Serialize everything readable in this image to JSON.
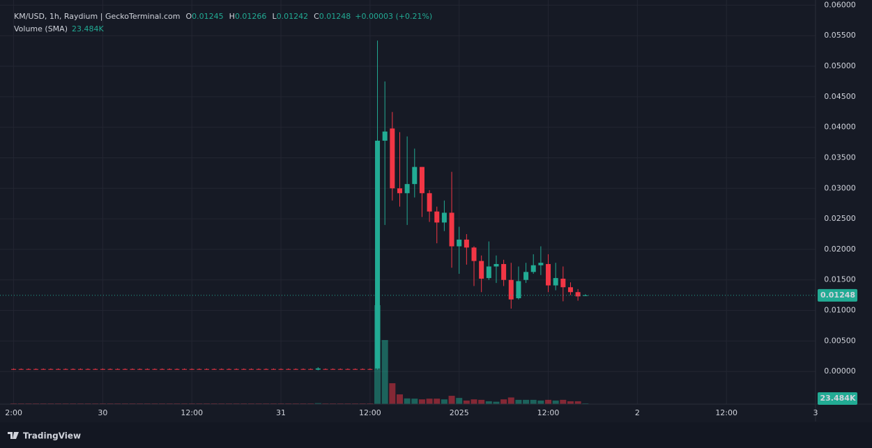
{
  "chart_data": {
    "type": "candlestick",
    "title": "KM/USD, 1h, Raydium | GeckoTerminal.com",
    "ohlc_legend": {
      "open_label": "O",
      "open": "0.01245",
      "high_label": "H",
      "high": "0.01266",
      "low_label": "L",
      "low": "0.01242",
      "close_label": "C",
      "close": "0.01248",
      "change": "+0.00003 (+0.21%)"
    },
    "volume_label": "Volume (SMA)",
    "volume_sma": "23.484K",
    "last_price": {
      "value": 0.01248,
      "label": "0.01248"
    },
    "footer": "TradingView",
    "up_color": "#22ab94",
    "down_color": "#f23645",
    "grid": true,
    "xlim": [
      -12.9,
      96
    ],
    "xticks": [
      {
        "value": -12,
        "label": "2:00"
      },
      {
        "value": 0,
        "label": "30"
      },
      {
        "value": 12,
        "label": "12:00"
      },
      {
        "value": 24,
        "label": "31"
      },
      {
        "value": 36,
        "label": "12:00"
      },
      {
        "value": 48,
        "label": "2025"
      },
      {
        "value": 60,
        "label": "12:00"
      },
      {
        "value": 72,
        "label": "2"
      },
      {
        "value": 84,
        "label": "12:00"
      },
      {
        "value": 96,
        "label": "3"
      }
    ],
    "ylim": [
      -0.00534,
      0.0597
    ],
    "yticks": [
      {
        "value": 0.06,
        "label": "0.06000"
      },
      {
        "value": 0.055,
        "label": "0.05500"
      },
      {
        "value": 0.05,
        "label": "0.05000"
      },
      {
        "value": 0.045,
        "label": "0.04500"
      },
      {
        "value": 0.04,
        "label": "0.04000"
      },
      {
        "value": 0.035,
        "label": "0.03500"
      },
      {
        "value": 0.03,
        "label": "0.03000"
      },
      {
        "value": 0.025,
        "label": "0.02500"
      },
      {
        "value": 0.02,
        "label": "0.02000"
      },
      {
        "value": 0.015,
        "label": "0.01500"
      },
      {
        "value": 0.01,
        "label": "0.01000"
      },
      {
        "value": 0.005,
        "label": "0.00500"
      },
      {
        "value": 0,
        "label": "0.00000"
      }
    ],
    "x": [
      -12,
      -11,
      -10,
      -9,
      -8,
      -7,
      -6,
      -5,
      -4,
      -3,
      -2,
      -1,
      0,
      1,
      2,
      3,
      4,
      5,
      6,
      7,
      8,
      9,
      10,
      11,
      12,
      13,
      14,
      15,
      16,
      17,
      18,
      19,
      20,
      21,
      22,
      23,
      24,
      25,
      26,
      27,
      28,
      29,
      30,
      31,
      32,
      33,
      34,
      35,
      36,
      37,
      38,
      39,
      40,
      41,
      42,
      43,
      44,
      45,
      46,
      47,
      48,
      49,
      50,
      51,
      52,
      53,
      54,
      55,
      56,
      57,
      58,
      59,
      60,
      61,
      62,
      63,
      64,
      65
    ],
    "open": [
      0.0004,
      0.0004,
      0.0004,
      0.0004,
      0.0004,
      0.0004,
      0.0004,
      0.0004,
      0.0004,
      0.0004,
      0.0004,
      0.0004,
      0.0004,
      0.0004,
      0.0004,
      0.0004,
      0.0004,
      0.0004,
      0.0004,
      0.0004,
      0.0004,
      0.0004,
      0.0004,
      0.0004,
      0.0004,
      0.0004,
      0.0004,
      0.0004,
      0.0004,
      0.0004,
      0.0004,
      0.0004,
      0.0004,
      0.0004,
      0.0004,
      0.0004,
      0.0004,
      0.0004,
      0.0004,
      0.0004,
      0.0004,
      0.0003,
      0.0004,
      0.0004,
      0.0004,
      0.0004,
      0.0004,
      0.0004,
      0.0004,
      0.0005,
      0.0378,
      0.0398,
      0.03,
      0.0292,
      0.0307,
      0.0335,
      0.0292,
      0.0262,
      0.0244,
      0.026,
      0.0205,
      0.0216,
      0.0203,
      0.0181,
      0.0153,
      0.0172,
      0.0176,
      0.015,
      0.012,
      0.015,
      0.0163,
      0.0174,
      0.0176,
      0.0141,
      0.0152,
      0.0138,
      0.013,
      0.01245
    ],
    "high": [
      0.0005,
      0.0005,
      0.0005,
      0.0005,
      0.0005,
      0.0005,
      0.0005,
      0.0005,
      0.0005,
      0.0005,
      0.0005,
      0.0005,
      0.0005,
      0.0005,
      0.0005,
      0.0005,
      0.0005,
      0.0005,
      0.0005,
      0.0005,
      0.0005,
      0.0005,
      0.0005,
      0.0005,
      0.0005,
      0.0005,
      0.0005,
      0.0005,
      0.0005,
      0.0005,
      0.0005,
      0.0005,
      0.0005,
      0.0005,
      0.0005,
      0.0005,
      0.0005,
      0.0005,
      0.0005,
      0.0005,
      0.0005,
      0.0007,
      0.0005,
      0.0005,
      0.0005,
      0.0005,
      0.0005,
      0.0005,
      0.0005,
      0.0542,
      0.0475,
      0.0425,
      0.0392,
      0.0385,
      0.0365,
      0.0335,
      0.0297,
      0.027,
      0.028,
      0.0327,
      0.0237,
      0.0225,
      0.0205,
      0.019,
      0.0213,
      0.019,
      0.0183,
      0.0178,
      0.0172,
      0.0178,
      0.0192,
      0.0205,
      0.0192,
      0.0178,
      0.0172,
      0.0146,
      0.0135,
      0.01266
    ],
    "low": [
      0.0003,
      0.0003,
      0.0003,
      0.0003,
      0.0003,
      0.0003,
      0.0003,
      0.0003,
      0.0003,
      0.0003,
      0.0003,
      0.0003,
      0.0003,
      0.0003,
      0.0003,
      0.0003,
      0.0003,
      0.0003,
      0.0003,
      0.0003,
      0.0003,
      0.0003,
      0.0003,
      0.0003,
      0.0003,
      0.0003,
      0.0003,
      0.0003,
      0.0003,
      0.0003,
      0.0003,
      0.0003,
      0.0003,
      0.0003,
      0.0003,
      0.0003,
      0.0003,
      0.0003,
      0.0003,
      0.0003,
      0.0003,
      0.0002,
      0.0003,
      0.0003,
      0.0003,
      0.0003,
      0.0003,
      0.0003,
      0.0003,
      0.0003,
      0.024,
      0.028,
      0.027,
      0.024,
      0.0285,
      0.0253,
      0.0245,
      0.021,
      0.023,
      0.017,
      0.016,
      0.0175,
      0.014,
      0.013,
      0.015,
      0.0145,
      0.014,
      0.0103,
      0.0118,
      0.0145,
      0.016,
      0.0158,
      0.013,
      0.0133,
      0.0115,
      0.0125,
      0.0116,
      0.01242
    ],
    "close": [
      0.0004,
      0.0004,
      0.0004,
      0.0004,
      0.0004,
      0.0004,
      0.0004,
      0.0004,
      0.0004,
      0.0004,
      0.0004,
      0.0004,
      0.0004,
      0.0004,
      0.0004,
      0.0004,
      0.0004,
      0.0004,
      0.0004,
      0.0004,
      0.0004,
      0.0004,
      0.0004,
      0.0004,
      0.0004,
      0.0004,
      0.0004,
      0.0004,
      0.0004,
      0.0004,
      0.0004,
      0.0004,
      0.0004,
      0.0004,
      0.0004,
      0.0004,
      0.0004,
      0.0004,
      0.0004,
      0.0004,
      0.0004,
      0.0005,
      0.0004,
      0.0004,
      0.0004,
      0.0004,
      0.0004,
      0.0004,
      0.0004,
      0.0378,
      0.0393,
      0.03,
      0.0292,
      0.0307,
      0.0335,
      0.0292,
      0.0262,
      0.0244,
      0.026,
      0.0205,
      0.0216,
      0.0203,
      0.0181,
      0.0152,
      0.0172,
      0.0176,
      0.015,
      0.0118,
      0.0148,
      0.0163,
      0.0174,
      0.0178,
      0.0141,
      0.0153,
      0.0138,
      0.013,
      0.0123,
      0.01248
    ],
    "volume": [
      3000,
      3000,
      3000,
      3000,
      3000,
      3000,
      3000,
      3000,
      3000,
      3000,
      3000,
      3000,
      3000,
      3000,
      3000,
      3000,
      3000,
      3000,
      3000,
      3000,
      3000,
      3000,
      3000,
      3000,
      3000,
      3000,
      3000,
      3000,
      3000,
      3000,
      3000,
      3000,
      3000,
      3000,
      3000,
      3000,
      3000,
      3000,
      3000,
      3000,
      3000,
      4000,
      3000,
      3000,
      3000,
      3000,
      3000,
      3000,
      3000,
      417000,
      270000,
      88000,
      41000,
      24000,
      23000,
      20000,
      23000,
      23000,
      20000,
      35000,
      26000,
      15000,
      20000,
      18000,
      12000,
      10000,
      20000,
      28000,
      18000,
      18000,
      18000,
      15000,
      18000,
      15000,
      18000,
      12000,
      12000,
      3000
    ]
  }
}
